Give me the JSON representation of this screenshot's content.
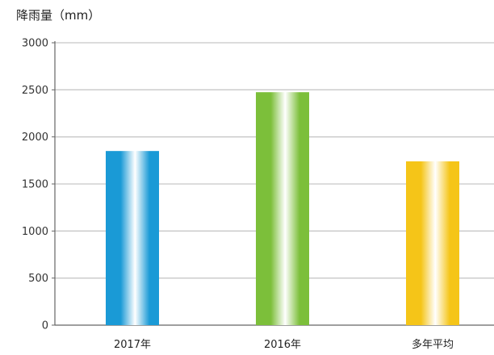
{
  "chart_data": {
    "type": "bar",
    "ylabel": "降雨量（mm）",
    "categories": [
      "2017年",
      "2016年",
      "多年平均"
    ],
    "values": [
      1850,
      2475,
      1740
    ],
    "ylim": [
      0,
      3000
    ],
    "yticks": [
      0,
      500,
      1000,
      1500,
      2000,
      2500,
      3000
    ],
    "grid": true,
    "colors": {
      "bars": [
        "#1a9ad6",
        "#7cbf3a",
        "#f5c518"
      ],
      "grid": "#c8c8c8",
      "axis": "#666666"
    }
  }
}
